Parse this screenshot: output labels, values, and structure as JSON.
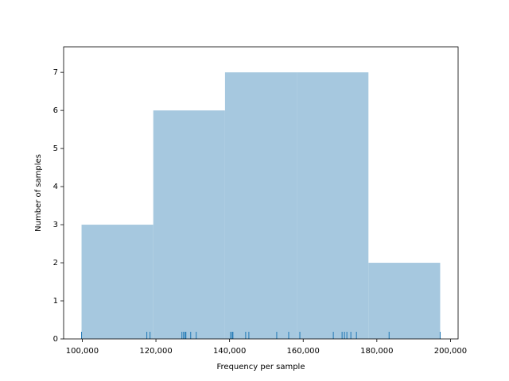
{
  "chart_data": {
    "type": "histogram",
    "xlabel": "Frequency per sample",
    "ylabel": "Number of samples",
    "bins": [
      99800,
      119280,
      138760,
      158240,
      177720,
      197200
    ],
    "values": [
      3,
      6,
      7,
      7,
      2
    ],
    "color": "#a6c8df",
    "rug": [
      99800,
      117530,
      118400,
      127060,
      127490,
      127920,
      128140,
      129440,
      130950,
      140260,
      140690,
      140910,
      144370,
      145240,
      152810,
      156060,
      159090,
      168180,
      170560,
      171210,
      171860,
      172940,
      174460,
      183330,
      197200
    ],
    "rug_color": "#1f77b4",
    "xlim": [
      94930,
      202070
    ],
    "xticks": [
      {
        "value": 100000,
        "label": "100,000"
      },
      {
        "value": 120000,
        "label": "120,000"
      },
      {
        "value": 140000,
        "label": "140,000"
      },
      {
        "value": 160000,
        "label": "160,000"
      },
      {
        "value": 180000,
        "label": "180,000"
      },
      {
        "value": 200000,
        "label": "200,000"
      }
    ],
    "ylim": [
      0,
      7.67
    ],
    "yticks": [
      0,
      1,
      2,
      3,
      4,
      5,
      6,
      7
    ]
  }
}
